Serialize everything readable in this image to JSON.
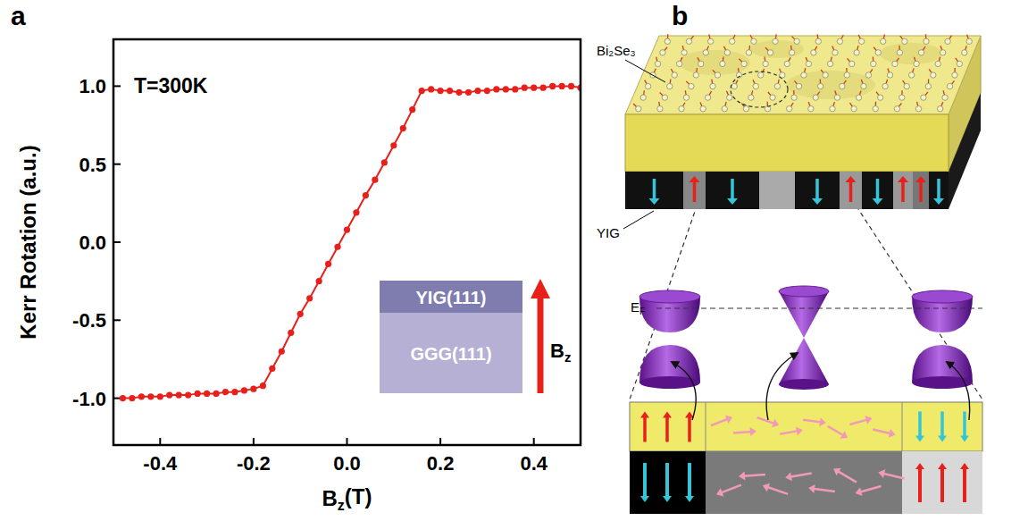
{
  "panel_labels": [
    "a",
    "b"
  ],
  "chart_data": {
    "type": "line",
    "x_label": {
      "main": "B",
      "sub": "z",
      "rest": "(T)"
    },
    "y_label": "Kerr Rotation (a.u.)",
    "annotations": {
      "temperature": "T=300K",
      "inset_layers": [
        "YIG(111)",
        "GGG(111)"
      ],
      "field": {
        "main": "B",
        "sub": "z"
      }
    },
    "xlim": [
      -0.5,
      0.5
    ],
    "ylim": [
      -1.3,
      1.3
    ],
    "xticks": [
      -0.4,
      -0.2,
      {
        "value": 0,
        "label": "0.0"
      },
      0.2,
      0.4
    ],
    "yticks": [
      {
        "value": -1,
        "label": "-1.0"
      },
      -0.5,
      {
        "value": 0,
        "label": "0.0"
      },
      0.5,
      {
        "value": 1,
        "label": "1.0"
      }
    ],
    "grid": false,
    "x": [
      -0.48,
      -0.46,
      -0.44,
      -0.42,
      -0.4,
      -0.38,
      -0.36,
      -0.34,
      -0.32,
      -0.3,
      -0.28,
      -0.26,
      -0.24,
      -0.22,
      -0.2,
      -0.18,
      -0.16,
      -0.14,
      -0.12,
      -0.1,
      -0.08,
      -0.06,
      -0.04,
      -0.02,
      0.0,
      0.02,
      0.04,
      0.06,
      0.08,
      0.1,
      0.12,
      0.14,
      0.16,
      0.18,
      0.2,
      0.22,
      0.24,
      0.26,
      0.28,
      0.3,
      0.32,
      0.34,
      0.36,
      0.38,
      0.4,
      0.42,
      0.44,
      0.46,
      0.48,
      0.5
    ],
    "series": [
      {
        "color": "#e8201c",
        "marker": "circle",
        "line_style": "solid",
        "values": [
          -1.0,
          -1.0,
          -0.99,
          -0.99,
          -0.99,
          -0.98,
          -0.98,
          -0.98,
          -0.97,
          -0.97,
          -0.97,
          -0.96,
          -0.96,
          -0.95,
          -0.94,
          -0.92,
          -0.81,
          -0.7,
          -0.58,
          -0.46,
          -0.36,
          -0.25,
          -0.14,
          -0.03,
          0.08,
          0.19,
          0.3,
          0.4,
          0.51,
          0.62,
          0.73,
          0.85,
          0.97,
          0.98,
          0.97,
          0.97,
          0.96,
          0.96,
          0.97,
          0.97,
          0.98,
          0.98,
          0.98,
          0.99,
          0.99,
          0.99,
          1.0,
          1.0,
          1.0,
          0.99
        ]
      }
    ]
  },
  "diagram": {
    "top_layer_label": "Bi₂Se₃",
    "bottom_layer_label": "YIG",
    "fermi_level": {
      "main": "E",
      "sub": "F"
    }
  }
}
